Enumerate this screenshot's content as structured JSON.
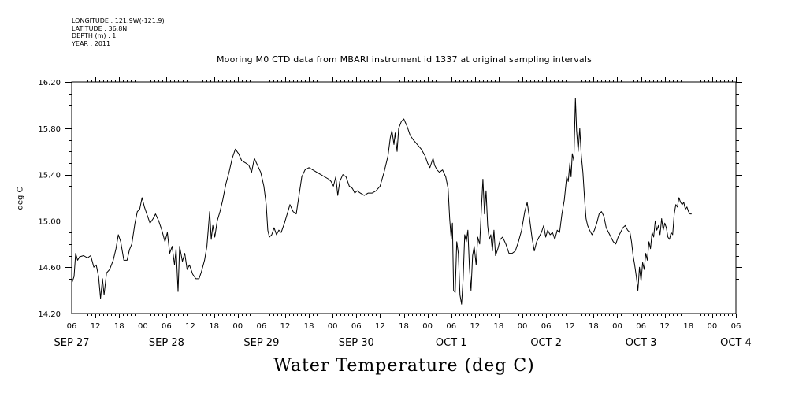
{
  "header": {
    "lines": [
      "LONGITUDE : 121.9W(-121.9)",
      "LATITUDE : 36.8N",
      "DEPTH (m) : 1",
      "YEAR : 2011"
    ]
  },
  "chart_data": {
    "type": "line",
    "title": "Mooring M0 CTD data from MBARI instrument id 1337 at original sampling intervals",
    "xlabel": "Water Temperature (deg C)",
    "ylabel": "deg C",
    "x_unit": "hours from 06:00 on SEP 27 2011",
    "xlim": [
      0,
      168
    ],
    "ylim": [
      14.2,
      16.2
    ],
    "y_ticks": [
      "14.20",
      "14.60",
      "15.00",
      "15.40",
      "15.80",
      "16.20"
    ],
    "y_tick_values": [
      14.2,
      14.6,
      15.0,
      15.4,
      15.8,
      16.2
    ],
    "x_hour_labels": [
      "06",
      "12",
      "18",
      "00",
      "06",
      "12",
      "18",
      "00",
      "06",
      "12",
      "18",
      "00",
      "06",
      "12",
      "18",
      "00",
      "06",
      "12",
      "18",
      "00",
      "06",
      "12",
      "18",
      "00",
      "06",
      "12",
      "18",
      "00",
      "06"
    ],
    "date_labels": [
      {
        "text": "SEP 27",
        "hour": 0
      },
      {
        "text": "SEP 28",
        "hour": 24
      },
      {
        "text": "SEP 29",
        "hour": 48
      },
      {
        "text": "SEP 30",
        "hour": 72
      },
      {
        "text": "OCT  1",
        "hour": 96
      },
      {
        "text": "OCT  2",
        "hour": 120
      },
      {
        "text": "OCT  3",
        "hour": 144
      },
      {
        "text": "OCT  4",
        "hour": 168
      }
    ],
    "grid": false,
    "series": [
      {
        "points": [
          [
            0,
            14.46
          ],
          [
            0.6,
            14.52
          ],
          [
            1,
            14.72
          ],
          [
            1.5,
            14.66
          ],
          [
            2,
            14.69
          ],
          [
            3,
            14.7
          ],
          [
            4,
            14.68
          ],
          [
            4.8,
            14.7
          ],
          [
            5.6,
            14.6
          ],
          [
            6.2,
            14.62
          ],
          [
            6.8,
            14.52
          ],
          [
            7.3,
            14.33
          ],
          [
            7.8,
            14.5
          ],
          [
            8.2,
            14.36
          ],
          [
            8.8,
            14.55
          ],
          [
            9.6,
            14.58
          ],
          [
            10.5,
            14.66
          ],
          [
            11.2,
            14.76
          ],
          [
            11.8,
            14.88
          ],
          [
            12.4,
            14.82
          ],
          [
            13.2,
            14.66
          ],
          [
            14,
            14.66
          ],
          [
            14.6,
            14.75
          ],
          [
            15.2,
            14.8
          ],
          [
            16,
            14.98
          ],
          [
            16.6,
            15.08
          ],
          [
            17.2,
            15.1
          ],
          [
            17.8,
            15.2
          ],
          [
            18.4,
            15.12
          ],
          [
            19,
            15.06
          ],
          [
            19.8,
            14.98
          ],
          [
            20.6,
            15.02
          ],
          [
            21.2,
            15.06
          ],
          [
            22,
            15.0
          ],
          [
            22.8,
            14.92
          ],
          [
            23.6,
            14.82
          ],
          [
            24.2,
            14.9
          ],
          [
            24.8,
            14.72
          ],
          [
            25.4,
            14.78
          ],
          [
            26,
            14.62
          ],
          [
            26.4,
            14.76
          ],
          [
            26.9,
            14.39
          ],
          [
            27.3,
            14.78
          ],
          [
            28,
            14.65
          ],
          [
            28.6,
            14.72
          ],
          [
            29.2,
            14.58
          ],
          [
            29.8,
            14.62
          ],
          [
            30.6,
            14.54
          ],
          [
            31.4,
            14.5
          ],
          [
            32.2,
            14.5
          ],
          [
            32.8,
            14.56
          ],
          [
            33.6,
            14.66
          ],
          [
            34.2,
            14.78
          ],
          [
            34.6,
            14.95
          ],
          [
            34.9,
            15.08
          ],
          [
            35.3,
            14.84
          ],
          [
            35.7,
            14.96
          ],
          [
            36.2,
            14.86
          ],
          [
            36.8,
            15.0
          ],
          [
            37.5,
            15.08
          ],
          [
            38.2,
            15.18
          ],
          [
            39,
            15.32
          ],
          [
            39.8,
            15.42
          ],
          [
            40.6,
            15.54
          ],
          [
            41.4,
            15.62
          ],
          [
            42.2,
            15.58
          ],
          [
            43,
            15.52
          ],
          [
            44,
            15.5
          ],
          [
            44.8,
            15.48
          ],
          [
            45.5,
            15.42
          ],
          [
            46.2,
            15.54
          ],
          [
            47,
            15.48
          ],
          [
            47.8,
            15.42
          ],
          [
            48.6,
            15.3
          ],
          [
            49.2,
            15.14
          ],
          [
            49.6,
            14.92
          ],
          [
            50,
            14.86
          ],
          [
            50.6,
            14.88
          ],
          [
            51.2,
            14.94
          ],
          [
            51.8,
            14.88
          ],
          [
            52.4,
            14.92
          ],
          [
            53,
            14.9
          ],
          [
            53.8,
            14.98
          ],
          [
            54.5,
            15.06
          ],
          [
            55.2,
            15.14
          ],
          [
            56,
            15.08
          ],
          [
            56.8,
            15.06
          ],
          [
            57.5,
            15.22
          ],
          [
            58.2,
            15.38
          ],
          [
            59,
            15.44
          ],
          [
            60,
            15.46
          ],
          [
            61,
            15.44
          ],
          [
            62,
            15.42
          ],
          [
            63,
            15.4
          ],
          [
            64,
            15.38
          ],
          [
            65,
            15.36
          ],
          [
            65.6,
            15.34
          ],
          [
            66.2,
            15.3
          ],
          [
            66.8,
            15.38
          ],
          [
            67.3,
            15.22
          ],
          [
            67.8,
            15.34
          ],
          [
            68.6,
            15.4
          ],
          [
            69.4,
            15.38
          ],
          [
            70.2,
            15.3
          ],
          [
            71,
            15.28
          ],
          [
            71.6,
            15.24
          ],
          [
            72.2,
            15.26
          ],
          [
            73,
            15.24
          ],
          [
            74,
            15.22
          ],
          [
            75,
            15.24
          ],
          [
            76,
            15.24
          ],
          [
            77,
            15.26
          ],
          [
            78,
            15.3
          ],
          [
            79,
            15.42
          ],
          [
            80,
            15.56
          ],
          [
            80.6,
            15.72
          ],
          [
            81,
            15.78
          ],
          [
            81.5,
            15.66
          ],
          [
            81.8,
            15.76
          ],
          [
            82.3,
            15.6
          ],
          [
            82.7,
            15.8
          ],
          [
            83.4,
            15.86
          ],
          [
            84,
            15.88
          ],
          [
            84.8,
            15.82
          ],
          [
            85.6,
            15.74
          ],
          [
            86.4,
            15.7
          ],
          [
            87.4,
            15.66
          ],
          [
            88.4,
            15.62
          ],
          [
            89.4,
            15.56
          ],
          [
            90,
            15.5
          ],
          [
            90.6,
            15.46
          ],
          [
            91,
            15.5
          ],
          [
            91.4,
            15.54
          ],
          [
            91.8,
            15.48
          ],
          [
            92.4,
            15.44
          ],
          [
            93,
            15.42
          ],
          [
            93.8,
            15.44
          ],
          [
            94.6,
            15.38
          ],
          [
            95.2,
            15.28
          ],
          [
            95.6,
            15.02
          ],
          [
            96,
            14.84
          ],
          [
            96.3,
            14.98
          ],
          [
            96.6,
            14.4
          ],
          [
            97,
            14.38
          ],
          [
            97.4,
            14.82
          ],
          [
            97.8,
            14.72
          ],
          [
            98.2,
            14.36
          ],
          [
            98.6,
            14.28
          ],
          [
            99,
            14.5
          ],
          [
            99.4,
            14.88
          ],
          [
            99.8,
            14.82
          ],
          [
            100.2,
            14.92
          ],
          [
            100.6,
            14.6
          ],
          [
            101,
            14.4
          ],
          [
            101.4,
            14.7
          ],
          [
            101.8,
            14.78
          ],
          [
            102.3,
            14.62
          ],
          [
            102.7,
            14.86
          ],
          [
            103.2,
            14.8
          ],
          [
            103.6,
            15.08
          ],
          [
            104,
            15.36
          ],
          [
            104.4,
            15.06
          ],
          [
            104.8,
            15.26
          ],
          [
            105.2,
            14.96
          ],
          [
            105.6,
            14.84
          ],
          [
            106,
            14.88
          ],
          [
            106.4,
            14.74
          ],
          [
            106.8,
            14.92
          ],
          [
            107.2,
            14.7
          ],
          [
            107.8,
            14.76
          ],
          [
            108.4,
            14.84
          ],
          [
            109,
            14.86
          ],
          [
            109.8,
            14.8
          ],
          [
            110.6,
            14.72
          ],
          [
            111.4,
            14.72
          ],
          [
            112.2,
            14.74
          ],
          [
            113,
            14.82
          ],
          [
            113.8,
            14.92
          ],
          [
            114.6,
            15.08
          ],
          [
            115.2,
            15.16
          ],
          [
            115.8,
            15.02
          ],
          [
            116.4,
            14.86
          ],
          [
            117,
            14.74
          ],
          [
            117.6,
            14.82
          ],
          [
            118.2,
            14.86
          ],
          [
            118.8,
            14.9
          ],
          [
            119.4,
            14.96
          ],
          [
            119.9,
            14.86
          ],
          [
            120.4,
            14.92
          ],
          [
            121,
            14.88
          ],
          [
            121.6,
            14.9
          ],
          [
            122.2,
            14.84
          ],
          [
            122.8,
            14.92
          ],
          [
            123.4,
            14.9
          ],
          [
            124,
            15.06
          ],
          [
            124.6,
            15.18
          ],
          [
            125.2,
            15.38
          ],
          [
            125.6,
            15.34
          ],
          [
            126,
            15.5
          ],
          [
            126.3,
            15.38
          ],
          [
            126.6,
            15.58
          ],
          [
            127,
            15.52
          ],
          [
            127.4,
            16.06
          ],
          [
            127.7,
            15.78
          ],
          [
            128.1,
            15.6
          ],
          [
            128.5,
            15.8
          ],
          [
            128.9,
            15.56
          ],
          [
            129.3,
            15.42
          ],
          [
            129.7,
            15.2
          ],
          [
            130.1,
            15.02
          ],
          [
            130.5,
            14.96
          ],
          [
            131,
            14.92
          ],
          [
            131.6,
            14.88
          ],
          [
            132.2,
            14.92
          ],
          [
            132.8,
            14.98
          ],
          [
            133.4,
            15.06
          ],
          [
            134,
            15.08
          ],
          [
            134.6,
            15.04
          ],
          [
            135.2,
            14.94
          ],
          [
            135.8,
            14.9
          ],
          [
            136.4,
            14.86
          ],
          [
            137,
            14.82
          ],
          [
            137.6,
            14.8
          ],
          [
            138.2,
            14.86
          ],
          [
            138.8,
            14.9
          ],
          [
            139.4,
            14.94
          ],
          [
            140,
            14.96
          ],
          [
            140.6,
            14.92
          ],
          [
            141.2,
            14.9
          ],
          [
            141.6,
            14.82
          ],
          [
            142,
            14.7
          ],
          [
            142.4,
            14.62
          ],
          [
            142.8,
            14.52
          ],
          [
            143.2,
            14.4
          ],
          [
            143.6,
            14.6
          ],
          [
            144,
            14.48
          ],
          [
            144.4,
            14.64
          ],
          [
            144.8,
            14.58
          ],
          [
            145.2,
            14.72
          ],
          [
            145.6,
            14.66
          ],
          [
            146,
            14.82
          ],
          [
            146.4,
            14.76
          ],
          [
            146.8,
            14.9
          ],
          [
            147.2,
            14.86
          ],
          [
            147.6,
            15.0
          ],
          [
            148,
            14.92
          ],
          [
            148.4,
            14.96
          ],
          [
            148.8,
            14.88
          ],
          [
            149.2,
            15.02
          ],
          [
            149.6,
            14.92
          ],
          [
            150,
            14.98
          ],
          [
            150.4,
            14.94
          ],
          [
            150.8,
            14.86
          ],
          [
            151.2,
            14.84
          ],
          [
            151.6,
            14.9
          ],
          [
            152,
            14.88
          ],
          [
            152.4,
            15.06
          ],
          [
            152.8,
            15.14
          ],
          [
            153.2,
            15.12
          ],
          [
            153.6,
            15.2
          ],
          [
            154,
            15.16
          ],
          [
            154.4,
            15.14
          ],
          [
            154.8,
            15.16
          ],
          [
            155.2,
            15.1
          ],
          [
            155.6,
            15.12
          ],
          [
            156,
            15.08
          ],
          [
            156.4,
            15.06
          ],
          [
            156.8,
            15.06
          ]
        ]
      }
    ]
  }
}
